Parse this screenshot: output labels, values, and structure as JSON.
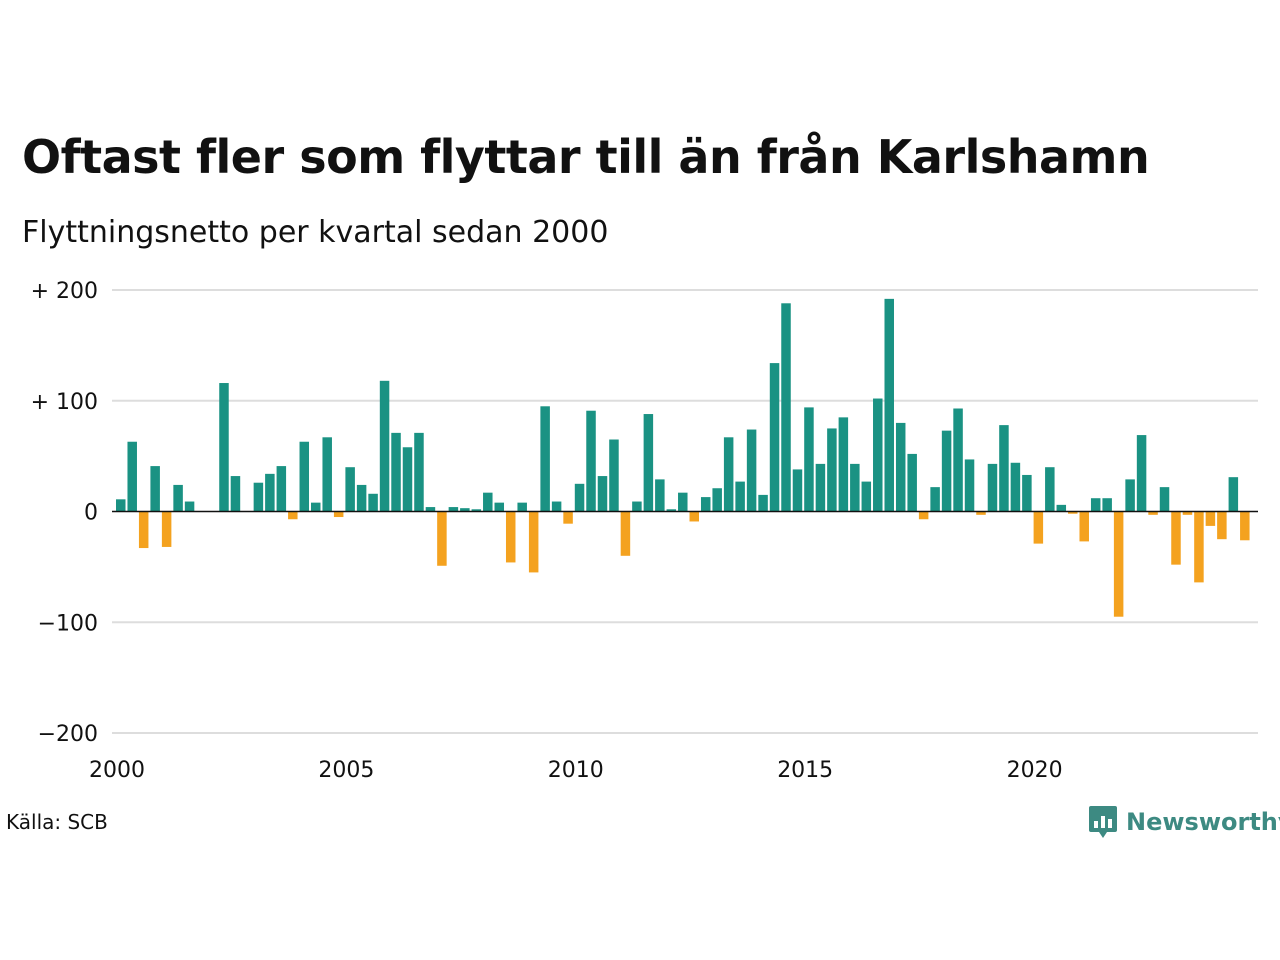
{
  "title": "Oftast fler som flyttar till än från Karlshamn",
  "subtitle": "Flyttningsnetto per kvartal sedan 2000",
  "source": "Källa: SCB",
  "brand": {
    "name": "Newsworthy",
    "icon": "newsworthy-chart-icon",
    "color": "#3d8a82"
  },
  "colors": {
    "positive": "#1a9283",
    "negative": "#f4a21f",
    "grid": "#dddddd",
    "zero": "#111111"
  },
  "chart_data": {
    "type": "bar",
    "x_start": 2000,
    "ylim": [
      -200,
      200
    ],
    "yticks": [
      200,
      100,
      0,
      -100,
      -200
    ],
    "ytick_labels": [
      "+ 200",
      "+ 100",
      "0",
      "−100",
      "−200"
    ],
    "xticks": [
      "2000",
      "2005",
      "2010",
      "2015",
      "2020"
    ],
    "grid": true,
    "values": [
      11,
      63,
      -33,
      41,
      -32,
      24,
      9,
      0,
      0,
      116,
      32,
      0,
      26,
      34,
      41,
      -7,
      63,
      8,
      67,
      -5,
      40,
      24,
      16,
      118,
      71,
      58,
      71,
      4,
      -49,
      4,
      3,
      2,
      17,
      8,
      -46,
      8,
      -55,
      95,
      9,
      -11,
      25,
      91,
      32,
      65,
      -40,
      9,
      88,
      29,
      2,
      17,
      -9,
      13,
      21,
      67,
      27,
      74,
      15,
      134,
      188,
      38,
      94,
      43,
      75,
      85,
      43,
      27,
      102,
      192,
      80,
      52,
      -7,
      22,
      73,
      93,
      47,
      -3,
      43,
      78,
      44,
      33,
      -29,
      40,
      6,
      -2,
      -27,
      12,
      12,
      -95,
      29,
      69,
      -3,
      22,
      -48,
      -3,
      -64,
      -13,
      -25,
      31,
      -26
    ]
  }
}
